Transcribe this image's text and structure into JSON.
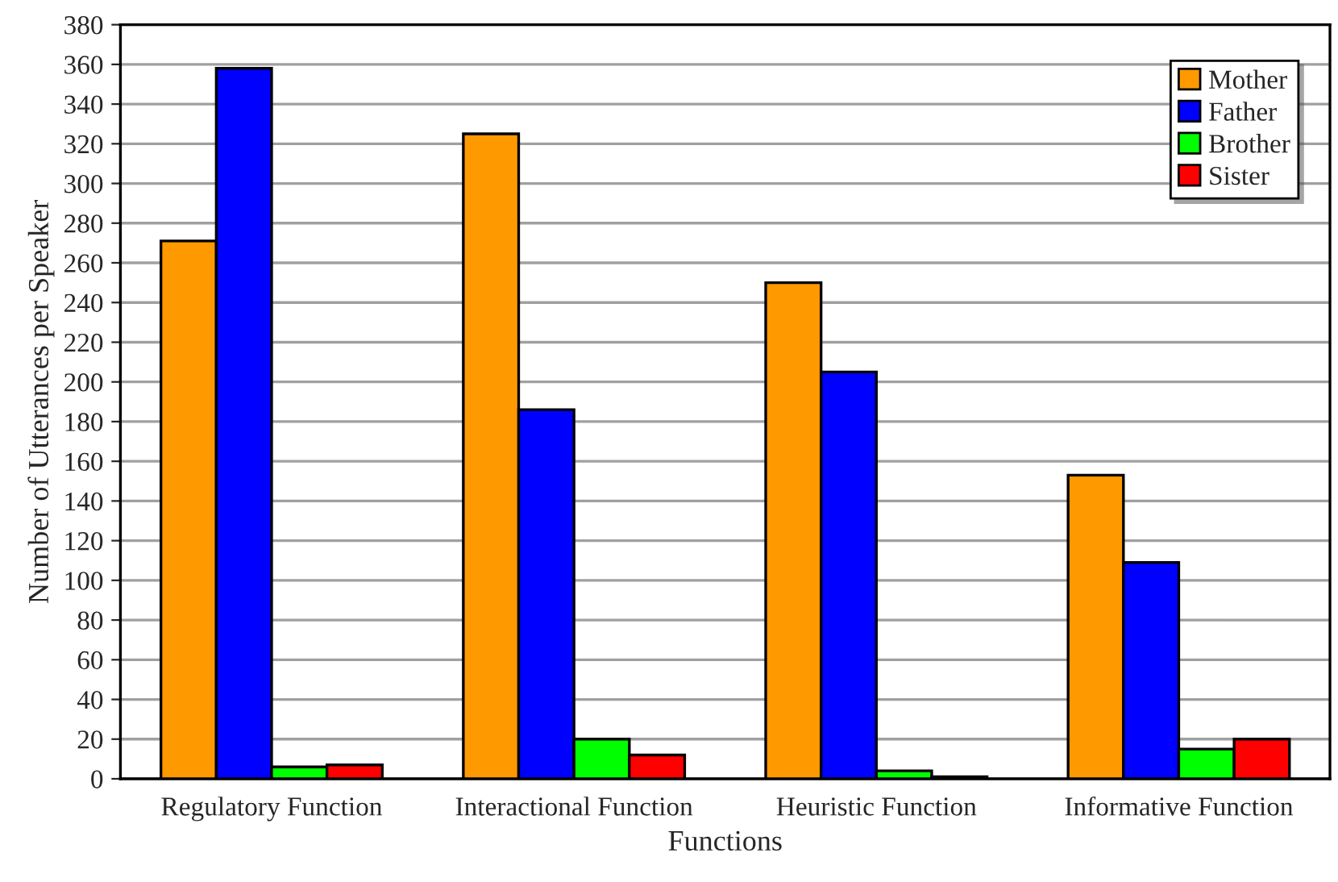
{
  "chart_data": {
    "type": "bar",
    "xlabel": "Functions",
    "ylabel": "Number of Utterances per Speaker",
    "categories": [
      "Regulatory Function",
      "Interactional Function",
      "Heuristic Function",
      "Informative Function"
    ],
    "series": [
      {
        "name": "Mother",
        "color": "#ff9900",
        "values": [
          271,
          325,
          250,
          153
        ]
      },
      {
        "name": "Father",
        "color": "#0000ff",
        "values": [
          358,
          186,
          205,
          109
        ]
      },
      {
        "name": "Brother",
        "color": "#00ff00",
        "values": [
          6,
          20,
          4,
          15
        ]
      },
      {
        "name": "Sister",
        "color": "#ff0000",
        "values": [
          7,
          12,
          1,
          20
        ]
      }
    ],
    "ylim": [
      0,
      380
    ],
    "yticks": [
      0,
      20,
      40,
      60,
      80,
      100,
      120,
      140,
      160,
      180,
      200,
      220,
      240,
      260,
      280,
      300,
      320,
      340,
      360,
      380
    ],
    "grid": "y",
    "legend": "top right"
  }
}
